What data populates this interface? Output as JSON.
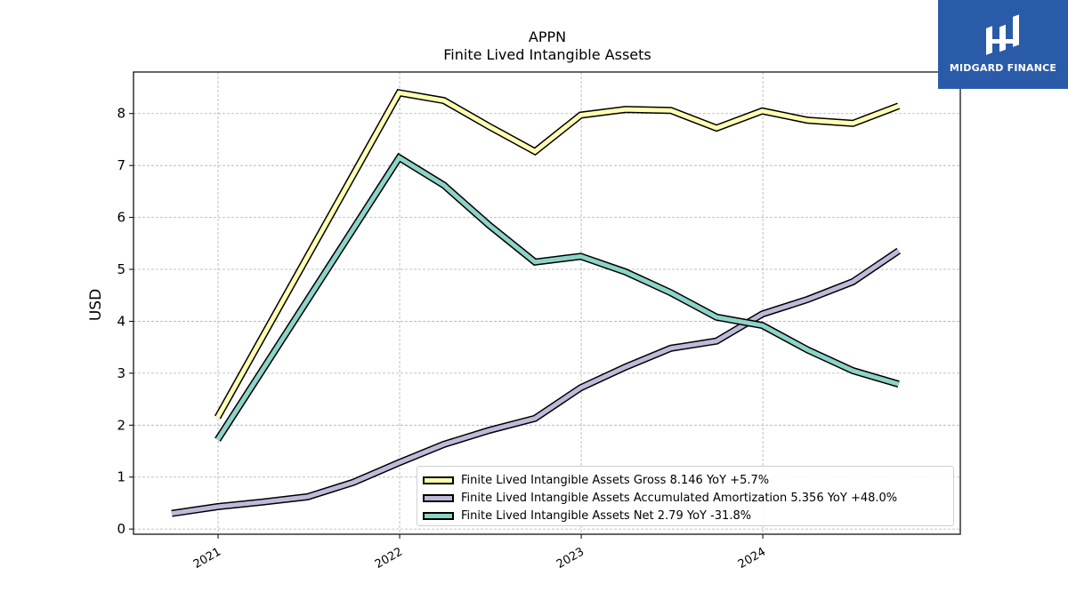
{
  "chart_data": {
    "type": "line",
    "title": "APPN",
    "subtitle": "Finite Lived Intangible Assets",
    "ylabel": "USD",
    "xlabel": "",
    "ylim": [
      -0.1,
      8.8
    ],
    "yticks": [
      0,
      1,
      2,
      3,
      4,
      5,
      6,
      7,
      8
    ],
    "xlim": [
      "2020-07-15",
      "2025-02-01"
    ],
    "xticks": [
      {
        "date": "2021-01-01",
        "label": "2021"
      },
      {
        "date": "2022-01-01",
        "label": "2022"
      },
      {
        "date": "2023-01-01",
        "label": "2023"
      },
      {
        "date": "2024-01-01",
        "label": "2024"
      }
    ],
    "grid": true,
    "legend_position": "lower-right",
    "series": [
      {
        "name": "Finite Lived Intangible Assets Gross",
        "legend_label": "Finite Lived Intangible Assets Gross  8.146 YoY +5.7%",
        "color": "#ffffb3",
        "points": [
          [
            "2020-12-31",
            2.15
          ],
          [
            "2021-12-31",
            8.4
          ],
          [
            "2022-03-31",
            8.25
          ],
          [
            "2022-06-30",
            7.75
          ],
          [
            "2022-09-30",
            7.27
          ],
          [
            "2022-12-31",
            7.97
          ],
          [
            "2023-03-31",
            8.08
          ],
          [
            "2023-06-30",
            8.06
          ],
          [
            "2023-09-30",
            7.72
          ],
          [
            "2023-12-31",
            8.05
          ],
          [
            "2024-03-31",
            7.87
          ],
          [
            "2024-06-30",
            7.81
          ],
          [
            "2024-09-30",
            8.146
          ]
        ]
      },
      {
        "name": "Finite Lived Intangible Assets Accumulated Amortization",
        "legend_label": "Finite Lived Intangible Assets Accumulated Amortization  5.356 YoY +48.0%",
        "color": "#bebada",
        "points": [
          [
            "2020-09-30",
            0.3
          ],
          [
            "2020-12-31",
            0.43
          ],
          [
            "2021-03-31",
            0.52
          ],
          [
            "2021-06-30",
            0.62
          ],
          [
            "2021-09-30",
            0.9
          ],
          [
            "2021-12-31",
            1.28
          ],
          [
            "2022-03-31",
            1.63
          ],
          [
            "2022-06-30",
            1.9
          ],
          [
            "2022-09-30",
            2.13
          ],
          [
            "2022-12-31",
            2.72
          ],
          [
            "2023-03-31",
            3.12
          ],
          [
            "2023-06-30",
            3.48
          ],
          [
            "2023-09-30",
            3.62
          ],
          [
            "2023-12-31",
            4.14
          ],
          [
            "2024-03-31",
            4.42
          ],
          [
            "2024-06-30",
            4.76
          ],
          [
            "2024-09-30",
            5.356
          ]
        ]
      },
      {
        "name": "Finite Lived Intangible Assets Net",
        "legend_label": "Finite Lived Intangible Assets Net  2.79 YoY -31.8%",
        "color": "#8dd3c7",
        "points": [
          [
            "2020-12-31",
            1.72
          ],
          [
            "2021-12-31",
            7.15
          ],
          [
            "2022-03-31",
            6.62
          ],
          [
            "2022-06-30",
            5.85
          ],
          [
            "2022-09-30",
            5.14
          ],
          [
            "2022-12-31",
            5.25
          ],
          [
            "2023-03-31",
            4.95
          ],
          [
            "2023-06-30",
            4.55
          ],
          [
            "2023-09-30",
            4.08
          ],
          [
            "2023-12-31",
            3.92
          ],
          [
            "2024-03-31",
            3.45
          ],
          [
            "2024-06-30",
            3.05
          ],
          [
            "2024-09-30",
            2.79
          ]
        ]
      }
    ]
  },
  "logo": {
    "text": "MIDGARD FINANCE",
    "background": "#2a5ba8"
  }
}
